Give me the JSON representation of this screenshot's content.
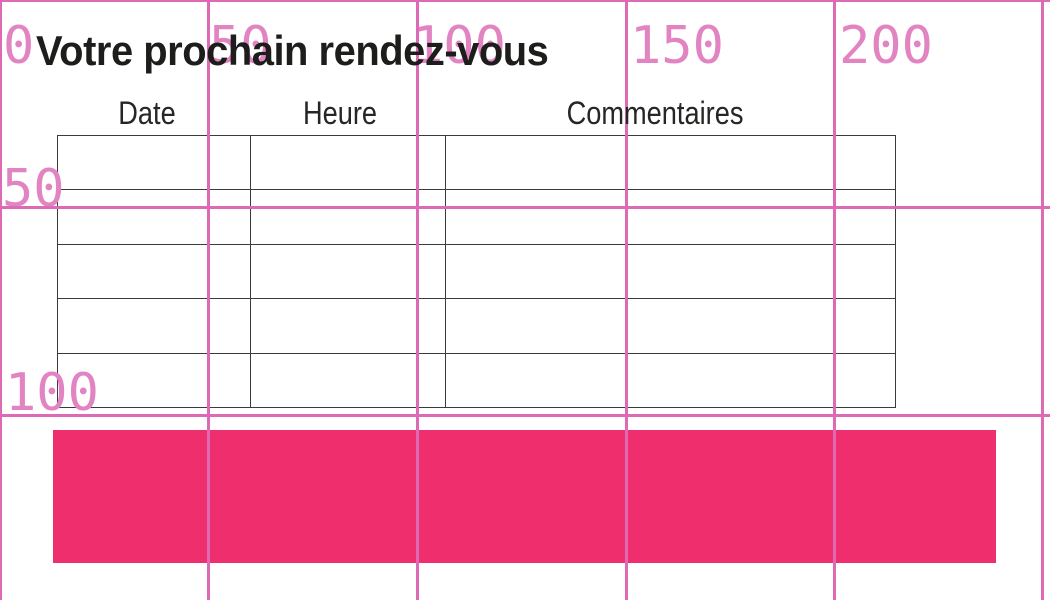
{
  "page": {
    "title": "Votre prochain rendez-vous"
  },
  "table": {
    "headers": [
      "Date",
      "Heure",
      "Commentaires"
    ],
    "rows": [
      [
        "",
        "",
        ""
      ],
      [
        "",
        "",
        ""
      ],
      [
        "",
        "",
        ""
      ],
      [
        "",
        "",
        ""
      ],
      [
        "",
        "",
        ""
      ]
    ]
  },
  "ruler": {
    "top_labels": [
      "0",
      "50",
      "100",
      "150",
      "200"
    ],
    "left_labels": [
      "50",
      "100"
    ],
    "line_color": "#de6ab6",
    "label_color": "#e283c2"
  },
  "highlight_bar": {
    "color": "#ee2e6d"
  },
  "colors": {
    "title_text": "#1d1d1b",
    "header_text": "#262624",
    "table_border": "#3b3b3b",
    "background": "#ffffff"
  }
}
